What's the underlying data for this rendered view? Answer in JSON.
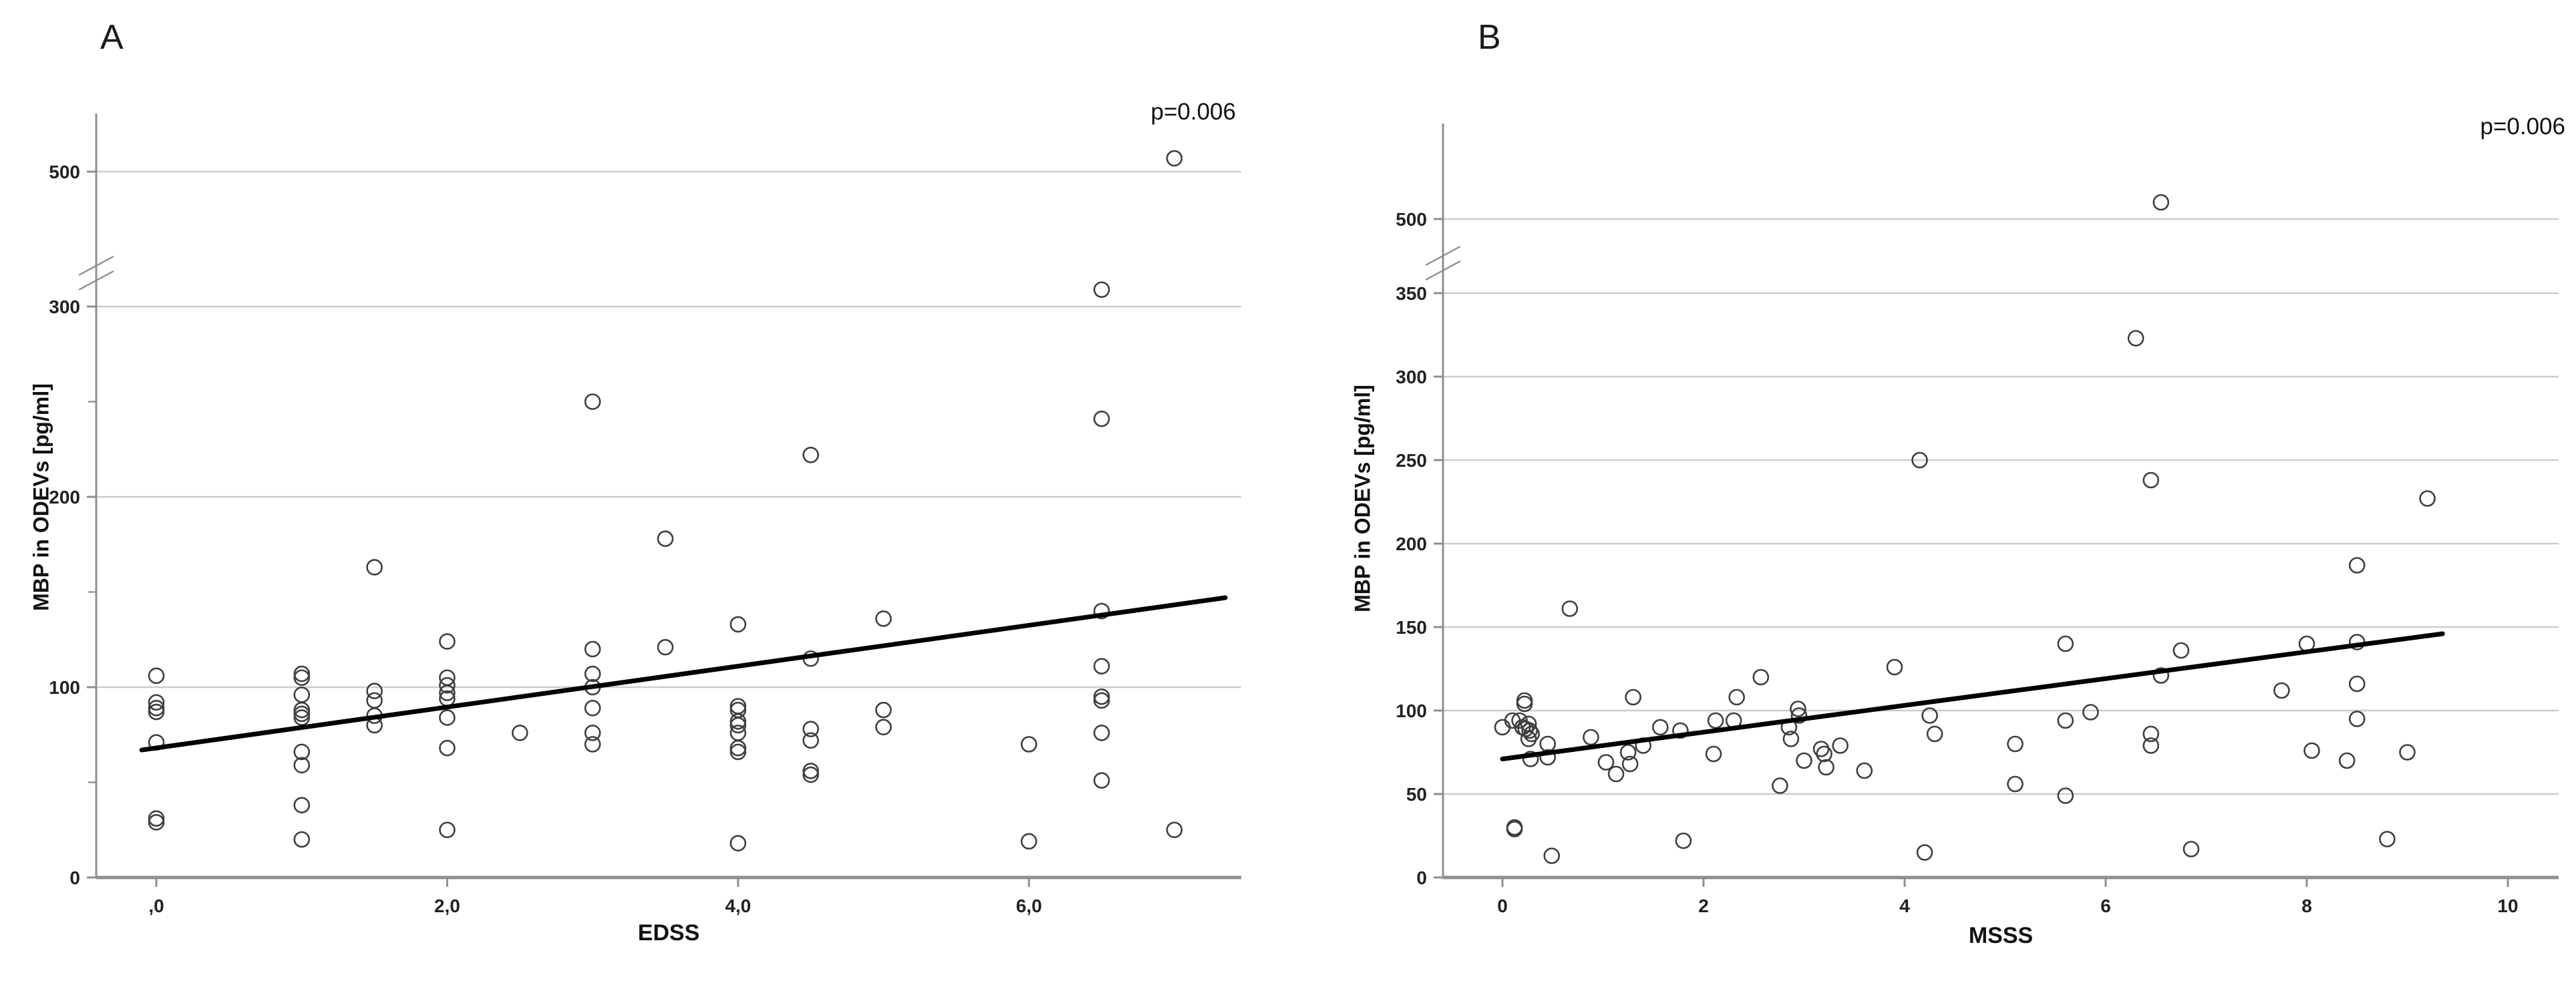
{
  "figure": {
    "background": "#ffffff",
    "gridline_color": "#cccccc",
    "axis_color": "#8f8f8f",
    "marker_color": "#3f3f3f",
    "regression_color": "#000000",
    "text_color": "#111111"
  },
  "chart_data": [
    {
      "type": "scatter",
      "panel_letter": "A",
      "annotation": "p=0.006",
      "xlabel": "EDSS",
      "ylabel": "MBP in ODEVs [pg/ml]",
      "x_ticks": [
        {
          "v": 0,
          "label": ",0"
        },
        {
          "v": 2,
          "label": "2,0"
        },
        {
          "v": 4,
          "label": "4,0"
        },
        {
          "v": 6,
          "label": "6,0"
        }
      ],
      "y_ticks_major": [
        0,
        100,
        200,
        300,
        500
      ],
      "y_ticks_minor": [
        50,
        150,
        250
      ],
      "axis_break_between": [
        300,
        500
      ],
      "xlim": [
        -0.4,
        7.5
      ],
      "ylim": [
        0,
        520
      ],
      "grid": "horizontal-only",
      "legend": "none",
      "regression": {
        "x1": -0.1,
        "v1": 67,
        "x2": 7.35,
        "v2": 147
      },
      "points": [
        [
          0,
          106
        ],
        [
          0,
          92
        ],
        [
          0,
          89
        ],
        [
          0,
          87
        ],
        [
          0,
          71
        ],
        [
          0,
          31
        ],
        [
          0,
          29
        ],
        [
          1,
          107
        ],
        [
          1,
          105
        ],
        [
          1,
          96
        ],
        [
          1,
          88
        ],
        [
          1,
          86
        ],
        [
          1,
          84
        ],
        [
          1,
          66
        ],
        [
          1,
          59
        ],
        [
          1,
          38
        ],
        [
          1,
          20
        ],
        [
          1.5,
          163
        ],
        [
          1.5,
          98
        ],
        [
          1.5,
          93
        ],
        [
          1.5,
          85
        ],
        [
          1.5,
          80
        ],
        [
          2,
          124
        ],
        [
          2,
          105
        ],
        [
          2,
          101
        ],
        [
          2,
          97
        ],
        [
          2,
          94
        ],
        [
          2,
          84
        ],
        [
          2,
          68
        ],
        [
          2,
          25
        ],
        [
          2.5,
          76
        ],
        [
          3,
          250
        ],
        [
          3,
          120
        ],
        [
          3,
          107
        ],
        [
          3,
          100
        ],
        [
          3,
          89
        ],
        [
          3,
          76
        ],
        [
          3,
          70
        ],
        [
          3.5,
          178
        ],
        [
          3.5,
          121
        ],
        [
          4,
          133
        ],
        [
          4,
          90
        ],
        [
          4,
          88
        ],
        [
          4,
          82
        ],
        [
          4,
          80
        ],
        [
          4,
          76
        ],
        [
          4,
          68
        ],
        [
          4,
          66
        ],
        [
          4,
          18
        ],
        [
          4.5,
          222
        ],
        [
          4.5,
          115
        ],
        [
          4.5,
          78
        ],
        [
          4.5,
          72
        ],
        [
          4.5,
          56
        ],
        [
          4.5,
          54
        ],
        [
          5,
          136
        ],
        [
          5,
          88
        ],
        [
          5,
          79
        ],
        [
          6,
          70
        ],
        [
          6,
          19
        ],
        [
          6.5,
          325
        ],
        [
          6.5,
          241
        ],
        [
          6.5,
          140
        ],
        [
          6.5,
          111
        ],
        [
          6.5,
          95
        ],
        [
          6.5,
          93
        ],
        [
          6.5,
          76
        ],
        [
          6.5,
          51
        ],
        [
          7,
          507
        ],
        [
          7,
          25
        ]
      ]
    },
    {
      "type": "scatter",
      "panel_letter": "B",
      "annotation": "p=0.006",
      "xlabel": "MSSS",
      "ylabel": "MBP in ODEVs [pg/ml]",
      "x_ticks": [
        {
          "v": 0,
          "label": "0"
        },
        {
          "v": 2,
          "label": "2"
        },
        {
          "v": 4,
          "label": "4"
        },
        {
          "v": 6,
          "label": "6"
        },
        {
          "v": 8,
          "label": "8"
        },
        {
          "v": 10,
          "label": "10"
        }
      ],
      "y_ticks_major": [
        0,
        50,
        100,
        150,
        200,
        250,
        300,
        350,
        500
      ],
      "y_ticks_minor": [],
      "axis_break_between": [
        350,
        500
      ],
      "xlim": [
        -0.6,
        10.5
      ],
      "ylim": [
        0,
        520
      ],
      "grid": "horizontal-only",
      "legend": "none",
      "regression": {
        "x1": 0,
        "v1": 71,
        "x2": 9.35,
        "v2": 146
      },
      "points": [
        [
          0.0,
          90
        ],
        [
          0.1,
          94
        ],
        [
          0.17,
          94
        ],
        [
          0.2,
          90
        ],
        [
          0.22,
          106
        ],
        [
          0.22,
          104
        ],
        [
          0.23,
          89
        ],
        [
          0.26,
          92
        ],
        [
          0.26,
          83
        ],
        [
          0.27,
          88
        ],
        [
          0.29,
          86
        ],
        [
          0.28,
          71
        ],
        [
          0.12,
          30
        ],
        [
          0.12,
          29
        ],
        [
          0.45,
          80
        ],
        [
          0.45,
          72
        ],
        [
          0.49,
          13
        ],
        [
          0.67,
          161
        ],
        [
          0.88,
          84
        ],
        [
          1.03,
          69
        ],
        [
          1.13,
          62
        ],
        [
          1.25,
          75
        ],
        [
          1.27,
          68
        ],
        [
          1.3,
          108
        ],
        [
          1.4,
          79
        ],
        [
          1.57,
          90
        ],
        [
          1.77,
          88
        ],
        [
          1.8,
          22
        ],
        [
          2.1,
          74
        ],
        [
          2.12,
          94
        ],
        [
          2.3,
          94
        ],
        [
          2.33,
          108
        ],
        [
          2.57,
          120
        ],
        [
          2.76,
          55
        ],
        [
          2.85,
          90
        ],
        [
          2.87,
          83
        ],
        [
          2.94,
          101
        ],
        [
          2.95,
          97
        ],
        [
          3.0,
          70
        ],
        [
          3.17,
          77
        ],
        [
          3.2,
          74
        ],
        [
          3.22,
          66
        ],
        [
          3.36,
          79
        ],
        [
          3.6,
          64
        ],
        [
          3.9,
          126
        ],
        [
          4.15,
          250
        ],
        [
          4.25,
          97
        ],
        [
          4.3,
          86
        ],
        [
          4.2,
          15
        ],
        [
          5.1,
          80
        ],
        [
          5.1,
          56
        ],
        [
          5.6,
          140
        ],
        [
          5.6,
          94
        ],
        [
          5.6,
          49
        ],
        [
          5.85,
          99
        ],
        [
          6.3,
          323
        ],
        [
          6.45,
          238
        ],
        [
          6.45,
          86
        ],
        [
          6.45,
          79
        ],
        [
          6.55,
          510
        ],
        [
          6.55,
          121
        ],
        [
          6.75,
          136
        ],
        [
          6.85,
          17
        ],
        [
          7.75,
          112
        ],
        [
          8.0,
          140
        ],
        [
          8.05,
          76
        ],
        [
          8.4,
          70
        ],
        [
          8.5,
          187
        ],
        [
          8.5,
          141
        ],
        [
          8.5,
          116
        ],
        [
          8.5,
          95
        ],
        [
          8.8,
          23
        ],
        [
          9.0,
          75
        ],
        [
          9.2,
          227
        ]
      ]
    }
  ]
}
